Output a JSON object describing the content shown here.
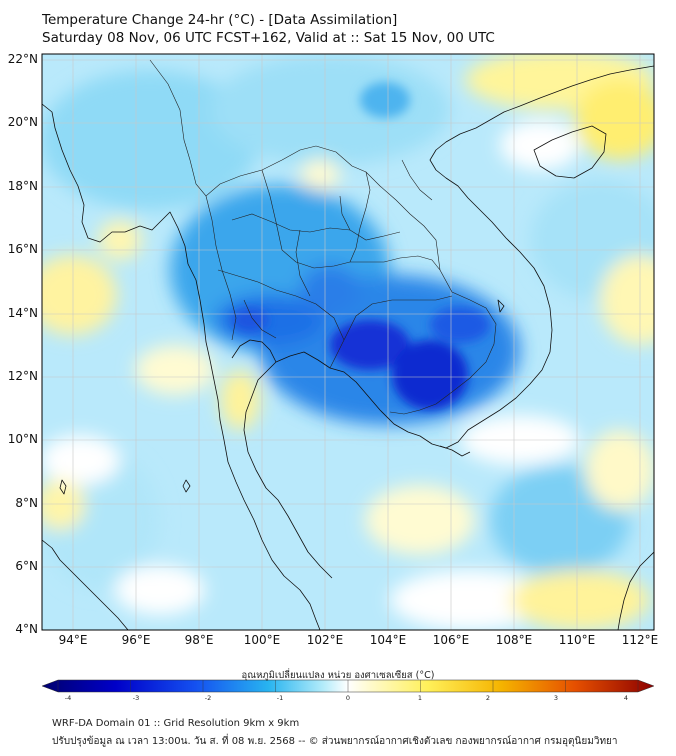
{
  "header": {
    "title": "Temperature Change 24-hr (°C) - [Data Assimilation]",
    "subtitle": "Saturday 08 Nov, 06 UTC FCST+162, Valid at :: Sat 15 Nov, 00 UTC"
  },
  "axes": {
    "lat_labels": [
      "22°N",
      "20°N",
      "18°N",
      "16°N",
      "14°N",
      "12°N",
      "10°N",
      "8°N",
      "6°N",
      "4°N"
    ],
    "lon_labels": [
      "94°E",
      "96°E",
      "98°E",
      "100°E",
      "102°E",
      "104°E",
      "106°E",
      "108°E",
      "110°E",
      "112°E"
    ],
    "lat_range": [
      4,
      22.2
    ],
    "lon_range": [
      93,
      112.5
    ]
  },
  "colorbar": {
    "title": "อุณหภูมิเปลี่ยนแปลง หน่วย องศาเซลเซียส (°C)",
    "ticks": [
      "-4",
      "-3",
      "-2",
      "-1",
      "0",
      "1",
      "2",
      "3",
      "4"
    ],
    "range": [
      -4,
      4
    ]
  },
  "footer": {
    "line1": "WRF-DA Domain 01 :: Grid Resolution 9km x 9km",
    "line2": "ปรับปรุงข้อมูล ณ เวลา 13:00น. วัน ส. ที่ 08 พ.ย. 2568 -- © ส่วนพยากรณ์อากาศเชิงตัวเลข กองพยากรณ์อากาศ กรมอุตุนิยมวิทยา"
  },
  "colors": {
    "neutral": "#ffffff",
    "deep_blue": "#0a1ac8",
    "blue": "#1e6ee6",
    "light_blue": "#7ad2f5",
    "yellow": "#fff07a",
    "orange": "#f5a000",
    "coastline": "#111111",
    "grid": "#c8c8c8"
  }
}
